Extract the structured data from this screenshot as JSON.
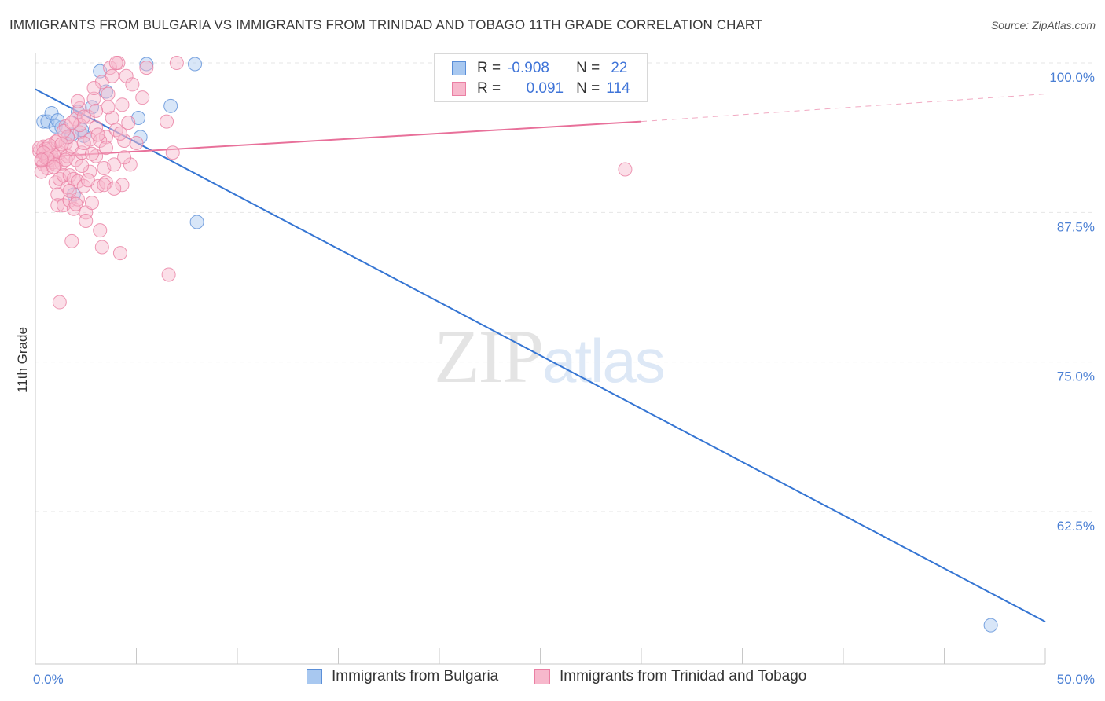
{
  "title": "IMMIGRANTS FROM BULGARIA VS IMMIGRANTS FROM TRINIDAD AND TOBAGO 11TH GRADE CORRELATION CHART",
  "source": "Source: ZipAtlas.com",
  "watermark": {
    "zip": "ZIP",
    "atlas": "atlas"
  },
  "colors": {
    "blue_fill": "#a8c8f0",
    "blue_stroke": "#5b8fd8",
    "blue_line": "#3575d3",
    "pink_fill": "#f7b8cc",
    "pink_stroke": "#ea7fa3",
    "pink_line": "#e8709a",
    "grid": "#e6e6e6",
    "axis_label": "#4a7fd4"
  },
  "legend": {
    "rows": [
      {
        "r_key": "R =",
        "r_val": "-0.908",
        "n_key": "N =",
        "n_val": "22"
      },
      {
        "r_key": "R =",
        "r_val": "0.091",
        "n_key": "N =",
        "n_val": "114"
      }
    ]
  },
  "bottom_legend": [
    "Immigrants from Bulgaria",
    "Immigrants from Trinidad and Tobago"
  ],
  "chart_data": {
    "type": "scatter",
    "title": "IMMIGRANTS FROM BULGARIA VS IMMIGRANTS FROM TRINIDAD AND TOBAGO 11TH GRADE CORRELATION CHART",
    "ylabel": "11th Grade",
    "xlabel": "",
    "xlim": [
      0,
      50
    ],
    "ylim": [
      50.5,
      100
    ],
    "y_ticks": [
      {
        "value": 100,
        "label": "100.0%"
      },
      {
        "value": 87.5,
        "label": "87.5%"
      },
      {
        "value": 75,
        "label": "75.0%"
      },
      {
        "value": 62.5,
        "label": "62.5%"
      }
    ],
    "x_tick_labels": [
      {
        "value": 0,
        "label": "0.0%"
      },
      {
        "value": 50,
        "label": "50.0%"
      }
    ],
    "x_minor_ticks": [
      0,
      5,
      10,
      15,
      20,
      25,
      30,
      35,
      40,
      45,
      50
    ],
    "series": [
      {
        "name": "Immigrants from Bulgaria",
        "color": "blue",
        "points": [
          [
            0.4,
            95.1
          ],
          [
            0.6,
            95.1
          ],
          [
            0.8,
            95.8
          ],
          [
            1.0,
            94.7
          ],
          [
            1.3,
            94.6
          ],
          [
            1.6,
            93.8
          ],
          [
            1.9,
            89.0
          ],
          [
            2.1,
            95.9
          ],
          [
            2.4,
            93.9
          ],
          [
            2.8,
            96.3
          ],
          [
            3.2,
            99.3
          ],
          [
            3.5,
            97.6
          ],
          [
            5.1,
            95.4
          ],
          [
            5.2,
            93.8
          ],
          [
            5.5,
            99.9
          ],
          [
            6.7,
            96.4
          ],
          [
            7.9,
            99.9
          ],
          [
            8.0,
            86.7
          ],
          [
            2.3,
            94.4
          ],
          [
            1.1,
            95.2
          ],
          [
            1.8,
            94.0
          ],
          [
            47.3,
            53.0
          ]
        ],
        "trend": {
          "x0": 0,
          "y0": 97.8,
          "x1": 50,
          "y1": 53.3
        }
      },
      {
        "name": "Immigrants from Trinidad and Tobago",
        "color": "pink",
        "points": [
          [
            0.2,
            92.6
          ],
          [
            0.3,
            91.8
          ],
          [
            0.4,
            93.0
          ],
          [
            0.4,
            91.5
          ],
          [
            0.5,
            92.1
          ],
          [
            0.6,
            92.3
          ],
          [
            0.6,
            91.2
          ],
          [
            0.7,
            91.9
          ],
          [
            0.8,
            92.8
          ],
          [
            0.8,
            92.2
          ],
          [
            0.9,
            91.7
          ],
          [
            1.0,
            93.4
          ],
          [
            1.0,
            90.0
          ],
          [
            1.1,
            89.0
          ],
          [
            1.1,
            88.1
          ],
          [
            1.2,
            92.5
          ],
          [
            1.2,
            90.3
          ],
          [
            1.3,
            91.6
          ],
          [
            1.4,
            90.6
          ],
          [
            1.4,
            88.1
          ],
          [
            1.5,
            94.7
          ],
          [
            1.5,
            93.3
          ],
          [
            1.6,
            92.2
          ],
          [
            1.6,
            89.6
          ],
          [
            1.7,
            90.6
          ],
          [
            1.7,
            88.5
          ],
          [
            1.8,
            85.1
          ],
          [
            1.8,
            93.0
          ],
          [
            1.9,
            90.3
          ],
          [
            1.9,
            87.8
          ],
          [
            2.0,
            95.3
          ],
          [
            2.0,
            91.9
          ],
          [
            2.1,
            90.1
          ],
          [
            2.1,
            88.6
          ],
          [
            2.2,
            96.2
          ],
          [
            2.2,
            94.2
          ],
          [
            2.3,
            92.5
          ],
          [
            2.4,
            89.7
          ],
          [
            2.5,
            87.5
          ],
          [
            2.5,
            86.8
          ],
          [
            2.6,
            95.5
          ],
          [
            2.7,
            93.6
          ],
          [
            2.7,
            90.9
          ],
          [
            2.8,
            88.3
          ],
          [
            2.9,
            97.0
          ],
          [
            3.0,
            94.6
          ],
          [
            3.0,
            92.2
          ],
          [
            3.1,
            89.7
          ],
          [
            3.2,
            86.0
          ],
          [
            3.3,
            98.4
          ],
          [
            3.3,
            84.6
          ],
          [
            3.4,
            91.2
          ],
          [
            3.5,
            93.8
          ],
          [
            3.5,
            90.0
          ],
          [
            3.6,
            97.4
          ],
          [
            3.7,
            99.6
          ],
          [
            3.8,
            95.4
          ],
          [
            3.9,
            91.5
          ],
          [
            4.0,
            94.4
          ],
          [
            4.1,
            100.0
          ],
          [
            4.2,
            84.1
          ],
          [
            4.3,
            96.5
          ],
          [
            4.3,
            89.8
          ],
          [
            4.4,
            93.5
          ],
          [
            4.5,
            98.9
          ],
          [
            4.6,
            95.0
          ],
          [
            4.7,
            91.5
          ],
          [
            4.8,
            98.2
          ],
          [
            5.0,
            93.3
          ],
          [
            5.3,
            97.1
          ],
          [
            6.8,
            92.5
          ],
          [
            6.5,
            95.1
          ],
          [
            6.6,
            82.3
          ],
          [
            7.0,
            100.0
          ],
          [
            29.2,
            91.1
          ],
          [
            1.2,
            80.0
          ],
          [
            0.3,
            90.9
          ],
          [
            0.9,
            92.3
          ],
          [
            1.1,
            93.5
          ],
          [
            1.6,
            93.8
          ],
          [
            2.3,
            91.4
          ],
          [
            2.4,
            93.3
          ],
          [
            2.6,
            90.2
          ],
          [
            3.6,
            96.3
          ],
          [
            4.0,
            100.0
          ],
          [
            0.2,
            92.9
          ],
          [
            0.5,
            92.8
          ],
          [
            0.7,
            93.1
          ],
          [
            1.0,
            91.5
          ],
          [
            1.3,
            93.2
          ],
          [
            1.5,
            91.9
          ],
          [
            1.7,
            89.3
          ],
          [
            2.0,
            88.2
          ],
          [
            2.2,
            94.8
          ],
          [
            2.8,
            92.4
          ],
          [
            3.0,
            96.0
          ],
          [
            3.2,
            93.5
          ],
          [
            3.4,
            89.8
          ],
          [
            3.8,
            98.9
          ],
          [
            4.2,
            94.1
          ],
          [
            0.4,
            92.5
          ],
          [
            0.6,
            92.0
          ],
          [
            0.9,
            91.3
          ],
          [
            1.4,
            94.3
          ],
          [
            1.8,
            95.0
          ],
          [
            2.1,
            96.8
          ],
          [
            2.4,
            95.5
          ],
          [
            2.9,
            97.9
          ],
          [
            3.1,
            94.0
          ],
          [
            3.5,
            92.9
          ],
          [
            3.9,
            89.5
          ],
          [
            4.4,
            92.1
          ],
          [
            5.5,
            99.6
          ],
          [
            0.3,
            91.9
          ]
        ],
        "trend": {
          "x0": 0,
          "y0": 92.1,
          "x1": 30,
          "y1": 95.1,
          "x_dash_end": 50,
          "y_dash_end": 97.4
        }
      }
    ]
  }
}
